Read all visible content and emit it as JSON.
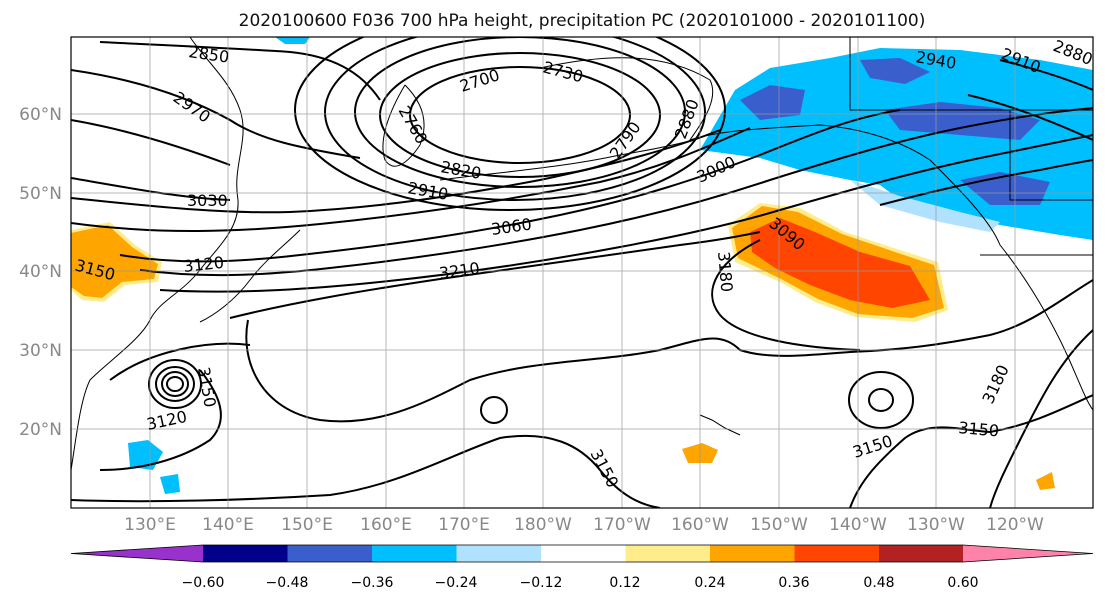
{
  "title": "2020100600 F036 700 hPa height, precipitation PC (2020101000 - 2020101100)",
  "lat_labels": [
    "60°N",
    "50°N",
    "40°N",
    "30°N",
    "20°N"
  ],
  "lon_labels": [
    "130°E",
    "140°E",
    "150°E",
    "160°E",
    "170°E",
    "180°W",
    "170°W",
    "160°W",
    "150°W",
    "140°W",
    "130°W",
    "120°W"
  ],
  "contour_labels": [
    "2850",
    "2970",
    "3030",
    "3120",
    "3150",
    "2760",
    "2700",
    "2730",
    "2820",
    "2910",
    "2790",
    "2880",
    "3000",
    "3060",
    "3210",
    "3180",
    "3090",
    "2940",
    "2910",
    "2880",
    "3150",
    "3120",
    "3150",
    "3150",
    "3180",
    "3150"
  ],
  "colorbar": {
    "ticks": [
      "−0.60",
      "−0.48",
      "−0.36",
      "−0.24",
      "−0.12",
      "0.12",
      "0.24",
      "0.36",
      "0.48",
      "0.60"
    ],
    "colors": [
      "#9932CC",
      "#00008B",
      "#3A5FCD",
      "#00BFFF",
      "#B0E2FF",
      "#FFFFFF",
      "#FFEC8B",
      "#FFA500",
      "#FF4500",
      "#B22222",
      "#FF82AB"
    ]
  }
}
